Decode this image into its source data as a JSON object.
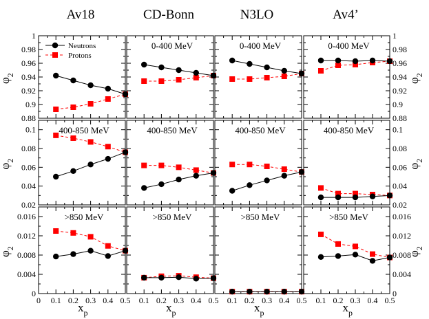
{
  "columns": [
    "Av18",
    "CD-Bonn",
    "N3LO",
    "Av4’"
  ],
  "y_label": {
    "symbol": "φ",
    "subscript": "2"
  },
  "x_label": {
    "symbol": "x",
    "subscript": "p"
  },
  "legend": {
    "neutrons": "Neutrons",
    "protons": "Protons"
  },
  "colors": {
    "neutrons": "#000000",
    "protons": "#ff0000"
  },
  "rows": [
    {
      "label": "0-400 MeV",
      "ylim": [
        0.88,
        1.0
      ],
      "ticks": [
        0.88,
        0.9,
        0.92,
        0.94,
        0.96,
        0.98,
        1.0
      ],
      "tick_labels": [
        "0.88",
        "0.9",
        "0.92",
        "0.94",
        "0.96",
        "0.98",
        "1"
      ]
    },
    {
      "label": "400-850 MeV",
      "ylim": [
        0.02,
        0.11
      ],
      "ticks": [
        0.02,
        0.04,
        0.06,
        0.08,
        0.1
      ],
      "tick_labels": [
        "0.02",
        "0.04",
        "0.06",
        "0.08",
        "0.1"
      ]
    },
    {
      "label": ">850 MeV",
      "ylim": [
        0.0,
        0.018
      ],
      "ticks": [
        0.0,
        0.004,
        0.008,
        0.012,
        0.016
      ],
      "tick_labels": [
        "0",
        "0.004",
        "0.008",
        "0.012",
        "0.016"
      ]
    }
  ],
  "x_ticks": [
    0,
    0.1,
    0.2,
    0.3,
    0.4,
    0.5
  ],
  "x_tick_labels": [
    "0",
    "0.1",
    "0.2",
    "0.3",
    "0.4",
    "0.5"
  ],
  "chart_data": {
    "type": "line",
    "x": [
      0.1,
      0.2,
      0.3,
      0.4,
      0.5
    ],
    "xlim": [
      0,
      0.5
    ],
    "grid": false,
    "legend_position": "top-left of first panel",
    "panels": [
      {
        "row": 0,
        "col": 0,
        "neutrons": [
          0.942,
          0.935,
          0.928,
          0.923,
          0.915
        ],
        "protons": [
          0.893,
          0.896,
          0.901,
          0.908,
          0.915
        ]
      },
      {
        "row": 0,
        "col": 1,
        "neutrons": [
          0.958,
          0.954,
          0.95,
          0.946,
          0.942
        ],
        "protons": [
          0.934,
          0.934,
          0.936,
          0.939,
          0.942
        ]
      },
      {
        "row": 0,
        "col": 2,
        "neutrons": [
          0.964,
          0.959,
          0.954,
          0.949,
          0.945
        ],
        "protons": [
          0.937,
          0.937,
          0.939,
          0.941,
          0.945
        ]
      },
      {
        "row": 0,
        "col": 3,
        "neutrons": [
          0.964,
          0.964,
          0.963,
          0.964,
          0.963
        ],
        "protons": [
          0.949,
          0.957,
          0.958,
          0.961,
          0.963
        ]
      },
      {
        "row": 1,
        "col": 0,
        "neutrons": [
          0.05,
          0.056,
          0.063,
          0.069,
          0.076
        ],
        "protons": [
          0.094,
          0.091,
          0.087,
          0.082,
          0.076
        ]
      },
      {
        "row": 1,
        "col": 1,
        "neutrons": [
          0.038,
          0.042,
          0.047,
          0.051,
          0.054
        ],
        "protons": [
          0.062,
          0.062,
          0.06,
          0.057,
          0.054
        ]
      },
      {
        "row": 1,
        "col": 2,
        "neutrons": [
          0.035,
          0.041,
          0.046,
          0.051,
          0.055
        ],
        "protons": [
          0.063,
          0.063,
          0.061,
          0.058,
          0.055
        ]
      },
      {
        "row": 1,
        "col": 3,
        "neutrons": [
          0.028,
          0.028,
          0.028,
          0.029,
          0.03
        ],
        "protons": [
          0.038,
          0.032,
          0.032,
          0.031,
          0.03
        ]
      },
      {
        "row": 2,
        "col": 0,
        "neutrons": [
          0.0077,
          0.0082,
          0.0089,
          0.0078,
          0.0089
        ],
        "protons": [
          0.013,
          0.0126,
          0.0118,
          0.0099,
          0.0089
        ]
      },
      {
        "row": 2,
        "col": 1,
        "neutrons": [
          0.0033,
          0.0033,
          0.0034,
          0.0031,
          0.0032
        ],
        "protons": [
          0.0033,
          0.0036,
          0.0037,
          0.0034,
          0.0032
        ]
      },
      {
        "row": 2,
        "col": 2,
        "neutrons": [
          0.0004,
          0.0004,
          0.0004,
          0.0004,
          0.0004
        ],
        "protons": [
          0.0004,
          0.0004,
          0.0004,
          0.0004,
          0.0004
        ]
      },
      {
        "row": 2,
        "col": 3,
        "neutrons": [
          0.0076,
          0.0078,
          0.0081,
          0.0068,
          0.0075
        ],
        "protons": [
          0.0123,
          0.0103,
          0.0098,
          0.0082,
          0.0075
        ]
      }
    ]
  }
}
